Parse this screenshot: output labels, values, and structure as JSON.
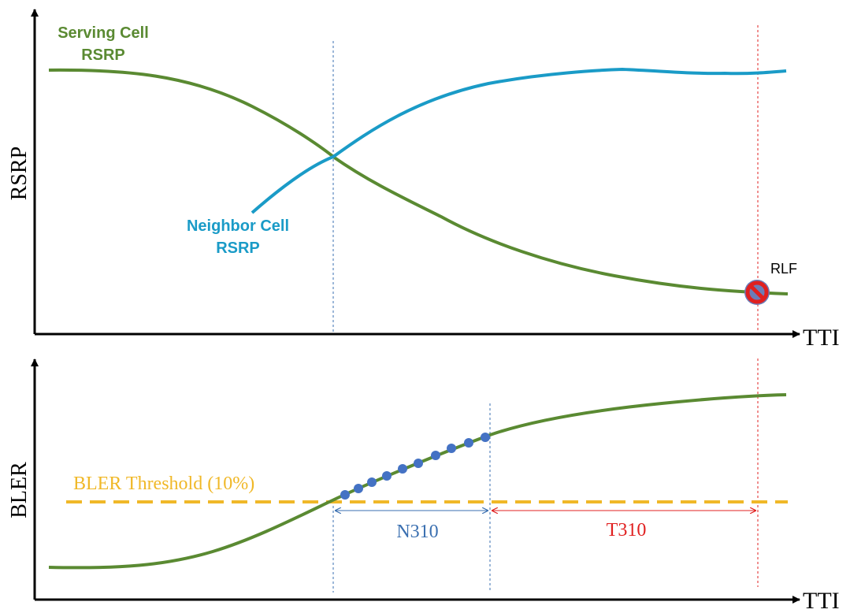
{
  "top_panel": {
    "y_axis_label": "RSRP",
    "x_axis_label": "TTI",
    "serving_cell": {
      "label_line1": "Serving Cell",
      "label_line2": "RSRP",
      "color": "#5a8a32"
    },
    "neighbor_cell": {
      "label_line1": "Neighbor Cell",
      "label_line2": "RSRP",
      "color": "#1a9bc7"
    },
    "rlf": {
      "label": "RLF",
      "color": "#e02020"
    }
  },
  "bottom_panel": {
    "y_axis_label": "BLER",
    "x_axis_label": "TTI",
    "bler_curve_color": "#5a8a32",
    "threshold": {
      "label": "BLER Threshold (10%)",
      "color": "#f0b828"
    },
    "sample_point_color": "#4472c4",
    "n310": {
      "label": "N310",
      "color": "#3a6fb0"
    },
    "t310": {
      "label": "T310",
      "color": "#e02020"
    }
  }
}
